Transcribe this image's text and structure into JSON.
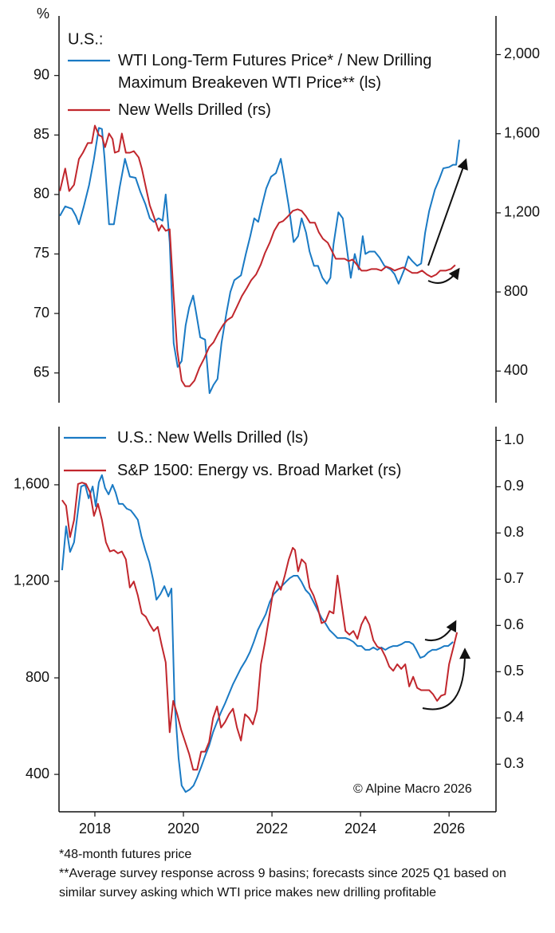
{
  "chart_data": [
    {
      "type": "line",
      "legend_title": "U.S.:",
      "ylabel": "%",
      "xlim": [
        2017.69,
        2027.56
      ],
      "ylim": [
        62.5,
        94
      ],
      "yticks": [
        65,
        70,
        75,
        80,
        85,
        90
      ],
      "y2lim": [
        240,
        2135
      ],
      "y2ticks": [
        400,
        800,
        {
          "value": 1200,
          "label": "1,200"
        },
        {
          "value": 1600,
          "label": "1,600"
        },
        {
          "value": 2000,
          "label": "2,000"
        }
      ],
      "series": [
        {
          "name": "WTI Long-Term Futures Price* / New Drilling Maximum Breakeven WTI Price** (ls)",
          "color": "#1a7ac4",
          "axis": "y",
          "x": [
            2017.71,
            2017.83,
            2017.98,
            2018.07,
            2018.14,
            2018.25,
            2018.37,
            2018.48,
            2018.59,
            2018.66,
            2018.72,
            2018.82,
            2018.93,
            2019.06,
            2019.18,
            2019.29,
            2019.42,
            2019.53,
            2019.64,
            2019.74,
            2019.83,
            2019.94,
            2020.03,
            2020.1,
            2020.19,
            2020.28,
            2020.37,
            2020.46,
            2020.55,
            2020.63,
            2020.72,
            2020.79,
            2020.88,
            2020.99,
            2021.09,
            2021.18,
            2021.27,
            2021.36,
            2021.47,
            2021.56,
            2021.65,
            2021.8,
            2021.91,
            2022.01,
            2022.1,
            2022.19,
            2022.27,
            2022.37,
            2022.48,
            2022.59,
            2022.7,
            2022.77,
            2022.88,
            2022.99,
            2023.09,
            2023.17,
            2023.27,
            2023.35,
            2023.45,
            2023.54,
            2023.64,
            2023.74,
            2023.82,
            2023.89,
            2024.0,
            2024.1,
            2024.19,
            2024.28,
            2024.37,
            2024.46,
            2024.55,
            2024.61,
            2024.7,
            2024.82,
            2024.93,
            2025.04,
            2025.18,
            2025.27,
            2025.36,
            2025.49,
            2025.58,
            2025.67,
            2025.78,
            2025.87,
            2025.96,
            2026.05,
            2026.18,
            2026.27,
            2026.37,
            2026.5,
            2026.59,
            2026.66,
            2026.73
          ],
          "values": [
            78.2,
            79,
            78.8,
            78.2,
            77.5,
            79,
            80.8,
            83,
            85.6,
            85.5,
            83,
            77.5,
            77.5,
            80.6,
            83,
            81.5,
            81.4,
            80.2,
            79.2,
            78,
            77.7,
            78,
            77.8,
            80,
            76,
            67.5,
            65.5,
            66,
            69,
            70.5,
            71.5,
            70,
            68,
            67.8,
            63.3,
            64,
            64.5,
            67.5,
            70,
            71.8,
            72.8,
            73.2,
            75,
            76.5,
            78,
            77.7,
            79,
            80.5,
            81.5,
            81.8,
            83,
            81.5,
            79,
            76,
            76.5,
            78,
            76.8,
            75.2,
            74,
            74,
            73,
            72.5,
            73,
            75.8,
            78.5,
            78,
            75.5,
            73,
            75,
            73.7,
            76.5,
            75,
            75.2,
            75.2,
            74.7,
            74,
            73.7,
            73.3,
            72.5,
            73.7,
            74.8,
            74.4,
            74,
            74.2,
            76.8,
            78.6,
            80.4,
            81.2,
            82.2,
            82.3,
            82.5,
            82.5,
            84.6
          ]
        },
        {
          "name": "New Wells Drilled (rs)",
          "color": "#c1272d",
          "axis": "y2",
          "x": [
            2017.71,
            2017.83,
            2017.92,
            2018.03,
            2018.14,
            2018.23,
            2018.34,
            2018.43,
            2018.5,
            2018.59,
            2018.66,
            2018.73,
            2018.82,
            2018.9,
            2018.95,
            2019.04,
            2019.11,
            2019.2,
            2019.29,
            2019.38,
            2019.49,
            2019.56,
            2019.65,
            2019.74,
            2019.83,
            2019.94,
            2020.01,
            2020.1,
            2020.19,
            2020.28,
            2020.36,
            2020.46,
            2020.54,
            2020.64,
            2020.75,
            2020.86,
            2020.97,
            2021.08,
            2021.18,
            2021.29,
            2021.4,
            2021.49,
            2021.6,
            2021.71,
            2021.82,
            2021.93,
            2022.03,
            2022.14,
            2022.25,
            2022.34,
            2022.45,
            2022.55,
            2022.66,
            2022.75,
            2022.86,
            2022.97,
            2023.08,
            2023.17,
            2023.27,
            2023.36,
            2023.47,
            2023.56,
            2023.65,
            2023.76,
            2023.85,
            2023.94,
            2024.03,
            2024.14,
            2024.23,
            2024.32,
            2024.41,
            2024.52,
            2024.64,
            2024.75,
            2024.86,
            2024.97,
            2025.08,
            2025.18,
            2025.27,
            2025.36,
            2025.47,
            2025.58,
            2025.67,
            2025.78,
            2025.89,
            2026.0,
            2026.1,
            2026.21,
            2026.3,
            2026.43,
            2026.54,
            2026.64
          ],
          "values": [
            1310,
            1424,
            1310,
            1342,
            1472,
            1504,
            1553,
            1553,
            1641,
            1593,
            1585,
            1532,
            1601,
            1573,
            1504,
            1512,
            1601,
            1504,
            1504,
            1512,
            1480,
            1424,
            1331,
            1238,
            1182,
            1109,
            1138,
            1109,
            1117,
            779,
            505,
            352,
            323,
            323,
            352,
            416,
            464,
            521,
            545,
            593,
            634,
            658,
            674,
            726,
            779,
            819,
            859,
            888,
            940,
            996,
            1049,
            1109,
            1150,
            1158,
            1182,
            1210,
            1218,
            1210,
            1182,
            1150,
            1150,
            1101,
            1069,
            1049,
            1009,
            968,
            968,
            968,
            956,
            964,
            940,
            908,
            908,
            916,
            916,
            908,
            928,
            920,
            908,
            916,
            924,
            908,
            896,
            896,
            908,
            888,
            876,
            888,
            908,
            908,
            916,
            936
          ]
        }
      ]
    },
    {
      "type": "line",
      "source": "© Alpine Macro 2026",
      "xlim": [
        2017.69,
        2027.56
      ],
      "xticks": [
        {
          "value": 2018.5,
          "label": "2018"
        },
        {
          "value": 2020.5,
          "label": "2020"
        },
        {
          "value": 2022.5,
          "label": "2022"
        },
        {
          "value": 2024.5,
          "label": "2024"
        },
        {
          "value": 2026.5,
          "label": "2026"
        }
      ],
      "ylim": [
        245,
        1841
      ],
      "yticks": [
        400,
        800,
        {
          "value": 1200,
          "label": "1,200"
        },
        {
          "value": 1600,
          "label": "1,600"
        }
      ],
      "y2lim": [
        0.197,
        1.03
      ],
      "y2ticks": [
        0.3,
        0.4,
        0.5,
        0.6,
        0.7,
        0.8,
        0.9,
        {
          "value": 1,
          "label": "1.0"
        }
      ],
      "series": [
        {
          "name": "U.S.: New Wells Drilled (ls)",
          "color": "#1a7ac4",
          "axis": "y",
          "x": [
            2017.76,
            2017.85,
            2017.94,
            2018.03,
            2018.12,
            2018.19,
            2018.28,
            2018.36,
            2018.45,
            2018.52,
            2018.59,
            2018.66,
            2018.73,
            2018.81,
            2018.9,
            2018.97,
            2019.04,
            2019.13,
            2019.22,
            2019.31,
            2019.38,
            2019.47,
            2019.55,
            2019.64,
            2019.73,
            2019.82,
            2019.89,
            2019.98,
            2020.07,
            2020.16,
            2020.23,
            2020.3,
            2020.39,
            2020.46,
            2020.55,
            2020.64,
            2020.73,
            2020.81,
            2020.9,
            2020.99,
            2021.08,
            2021.17,
            2021.26,
            2021.35,
            2021.44,
            2021.53,
            2021.62,
            2021.71,
            2021.8,
            2021.91,
            2022.0,
            2022.09,
            2022.18,
            2022.27,
            2022.36,
            2022.45,
            2022.54,
            2022.63,
            2022.72,
            2022.81,
            2022.9,
            2022.99,
            2023.08,
            2023.17,
            2023.26,
            2023.35,
            2023.44,
            2023.53,
            2023.62,
            2023.71,
            2023.8,
            2023.89,
            2023.98,
            2024.07,
            2024.16,
            2024.25,
            2024.34,
            2024.43,
            2024.52,
            2024.61,
            2024.7,
            2024.79,
            2024.88,
            2024.97,
            2025.06,
            2025.15,
            2025.24,
            2025.33,
            2025.42,
            2025.51,
            2025.6,
            2025.69,
            2025.76,
            2025.85,
            2025.94,
            2026.03,
            2026.12,
            2026.21,
            2026.3,
            2026.39,
            2026.48,
            2026.59
          ],
          "values": [
            1246,
            1428,
            1322,
            1362,
            1494,
            1593,
            1600,
            1544,
            1593,
            1511,
            1610,
            1640,
            1587,
            1560,
            1600,
            1567,
            1521,
            1521,
            1501,
            1494,
            1478,
            1455,
            1388,
            1329,
            1279,
            1203,
            1124,
            1147,
            1180,
            1137,
            1170,
            701,
            469,
            354,
            327,
            337,
            354,
            387,
            430,
            476,
            519,
            575,
            618,
            658,
            694,
            734,
            774,
            807,
            840,
            873,
            906,
            949,
            998,
            1031,
            1064,
            1114,
            1147,
            1164,
            1180,
            1197,
            1213,
            1223,
            1223,
            1197,
            1164,
            1147,
            1114,
            1081,
            1048,
            1025,
            998,
            982,
            965,
            965,
            965,
            959,
            949,
            932,
            932,
            916,
            916,
            926,
            916,
            926,
            916,
            926,
            932,
            932,
            939,
            949,
            949,
            939,
            916,
            883,
            889,
            906,
            916,
            916,
            923,
            932,
            932,
            949
          ]
        },
        {
          "name": "S&P 1500: Energy vs. Broad Market (rs)",
          "color": "#c1272d",
          "axis": "y2",
          "x": [
            2017.76,
            2017.85,
            2017.94,
            2018.03,
            2018.12,
            2018.21,
            2018.3,
            2018.39,
            2018.48,
            2018.57,
            2018.66,
            2018.75,
            2018.84,
            2018.93,
            2019.02,
            2019.11,
            2019.2,
            2019.29,
            2019.38,
            2019.47,
            2019.56,
            2019.65,
            2019.74,
            2019.83,
            2019.92,
            2020.01,
            2020.1,
            2020.19,
            2020.27,
            2020.36,
            2020.45,
            2020.54,
            2020.63,
            2020.72,
            2020.81,
            2020.9,
            2020.99,
            2021.08,
            2021.17,
            2021.26,
            2021.35,
            2021.44,
            2021.53,
            2021.62,
            2021.71,
            2021.8,
            2021.89,
            2021.98,
            2022.07,
            2022.16,
            2022.25,
            2022.34,
            2022.43,
            2022.52,
            2022.61,
            2022.7,
            2022.79,
            2022.88,
            2022.97,
            2023.02,
            2023.09,
            2023.17,
            2023.26,
            2023.35,
            2023.44,
            2023.53,
            2023.62,
            2023.71,
            2023.8,
            2023.89,
            2023.98,
            2024.07,
            2024.16,
            2024.25,
            2024.34,
            2024.43,
            2024.52,
            2024.61,
            2024.7,
            2024.79,
            2024.88,
            2024.97,
            2025.06,
            2025.15,
            2025.24,
            2025.33,
            2025.42,
            2025.51,
            2025.6,
            2025.69,
            2025.78,
            2025.87,
            2025.96,
            2026.05,
            2026.14,
            2026.23,
            2026.32,
            2026.41,
            2026.5,
            2026.59,
            2026.68
          ],
          "values": [
            0.871,
            0.859,
            0.791,
            0.828,
            0.906,
            0.909,
            0.906,
            0.888,
            0.837,
            0.863,
            0.828,
            0.78,
            0.76,
            0.763,
            0.756,
            0.76,
            0.743,
            0.682,
            0.695,
            0.665,
            0.626,
            0.619,
            0.602,
            0.588,
            0.597,
            0.557,
            0.52,
            0.369,
            0.437,
            0.408,
            0.374,
            0.348,
            0.322,
            0.288,
            0.288,
            0.327,
            0.327,
            0.348,
            0.4,
            0.425,
            0.379,
            0.391,
            0.408,
            0.42,
            0.379,
            0.351,
            0.408,
            0.4,
            0.386,
            0.417,
            0.516,
            0.562,
            0.614,
            0.67,
            0.695,
            0.677,
            0.708,
            0.743,
            0.768,
            0.763,
            0.717,
            0.743,
            0.734,
            0.682,
            0.665,
            0.64,
            0.605,
            0.609,
            0.631,
            0.626,
            0.708,
            0.648,
            0.588,
            0.58,
            0.588,
            0.571,
            0.602,
            0.619,
            0.602,
            0.568,
            0.554,
            0.55,
            0.533,
            0.511,
            0.502,
            0.516,
            0.506,
            0.516,
            0.468,
            0.489,
            0.465,
            0.46,
            0.46,
            0.46,
            0.451,
            0.437,
            0.448,
            0.451,
            0.516,
            0.55,
            0.585
          ]
        }
      ]
    }
  ],
  "footnotes": [
    "*48-month futures price",
    "**Average survey response across 9 basins; forecasts since 2025 Q1 based on similar survey asking which WTI price makes new drilling profitable"
  ]
}
